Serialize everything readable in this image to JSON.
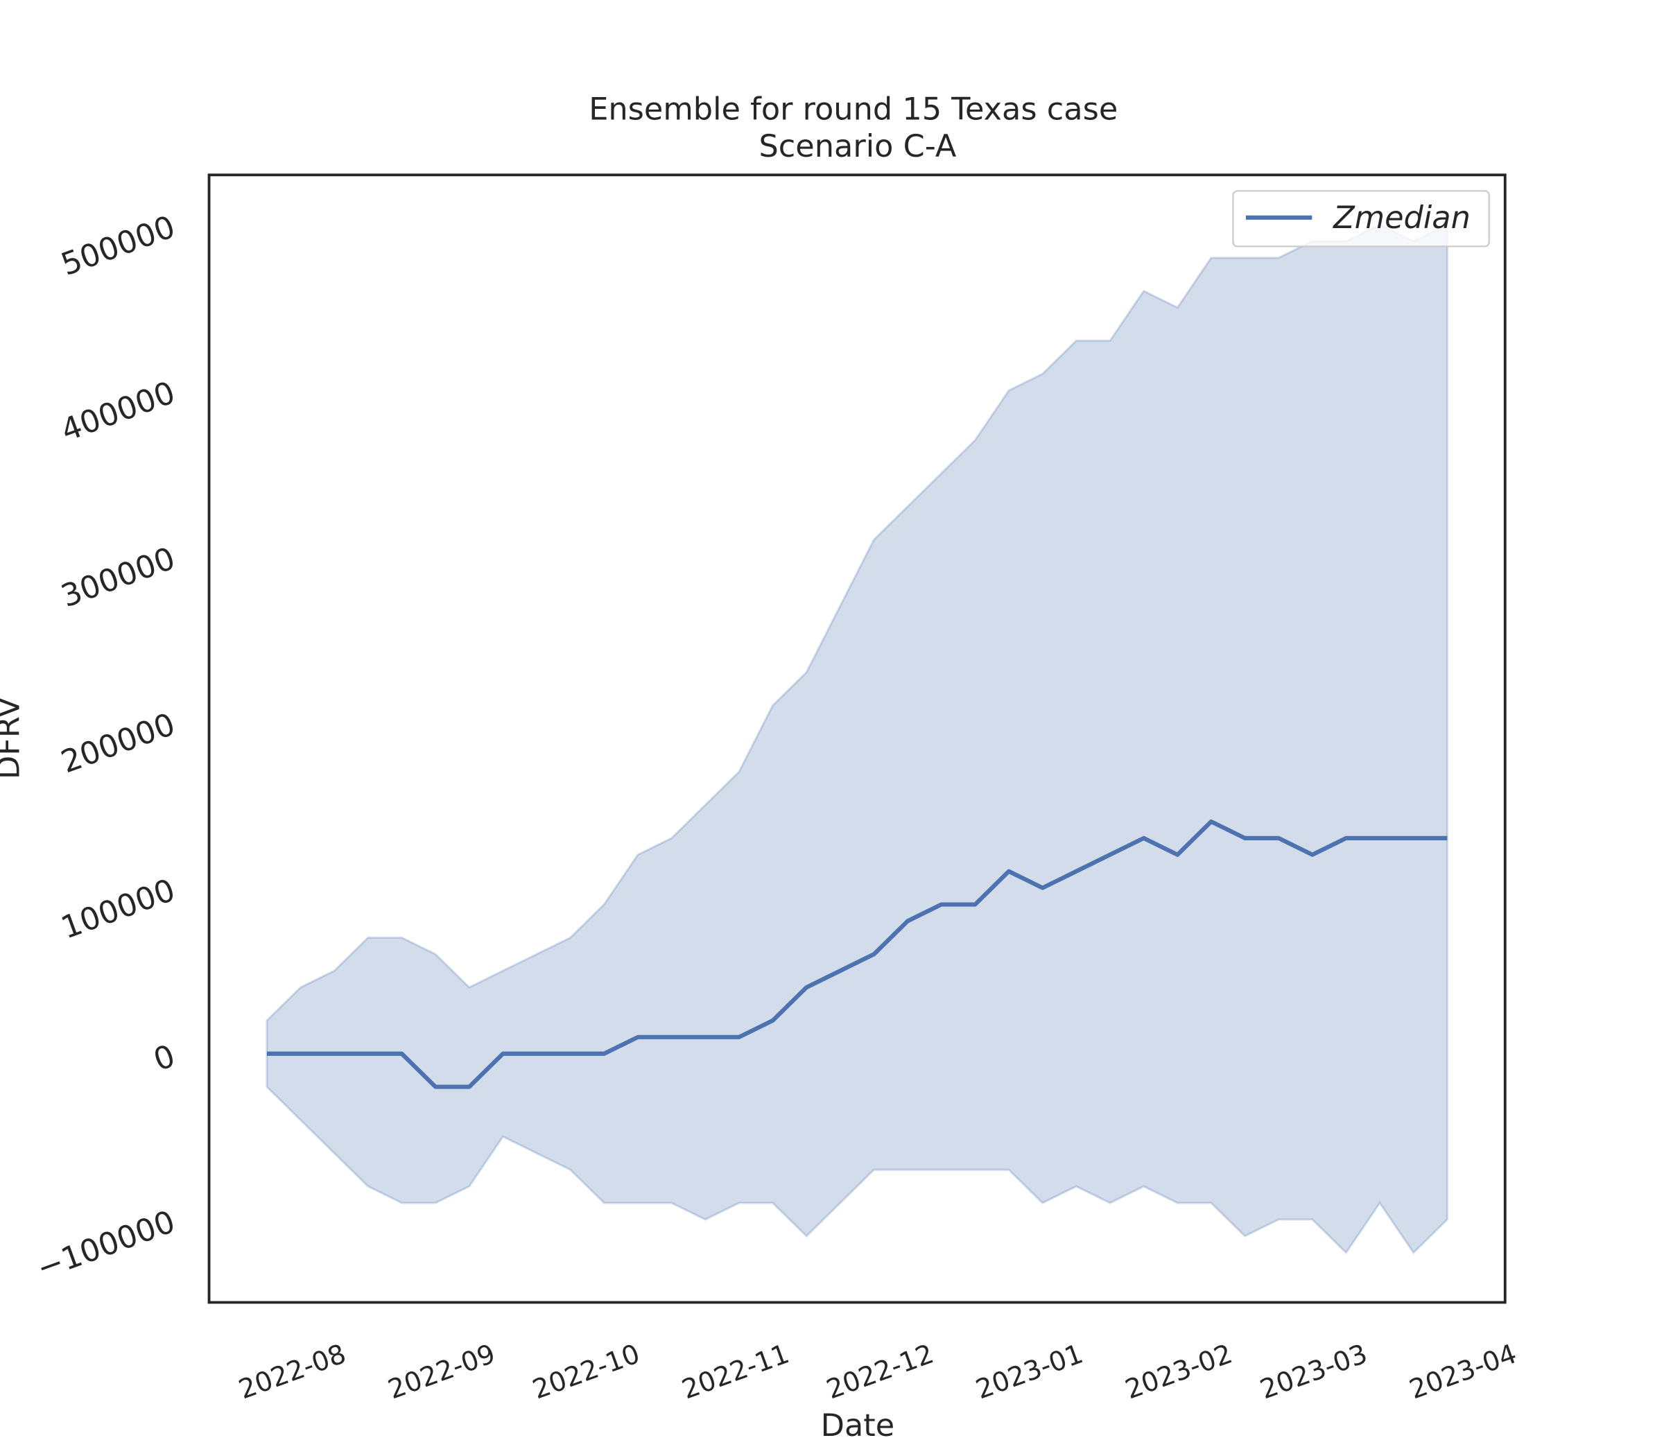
{
  "chart_data": {
    "type": "line",
    "title": "Ensemble for round 15 Texas case",
    "subtitle": "Scenario C-A",
    "x_label": "Date",
    "y_label": "DFRV",
    "x": [
      "2022-07-17",
      "2022-07-24",
      "2022-07-31",
      "2022-08-07",
      "2022-08-14",
      "2022-08-21",
      "2022-08-28",
      "2022-09-04",
      "2022-09-11",
      "2022-09-18",
      "2022-09-25",
      "2022-10-02",
      "2022-10-09",
      "2022-10-16",
      "2022-10-23",
      "2022-10-30",
      "2022-11-06",
      "2022-11-13",
      "2022-11-20",
      "2022-11-27",
      "2022-12-04",
      "2022-12-11",
      "2022-12-18",
      "2022-12-25",
      "2023-01-01",
      "2023-01-08",
      "2023-01-15",
      "2023-01-22",
      "2023-01-29",
      "2023-02-05",
      "2023-02-12",
      "2023-02-19",
      "2023-02-26",
      "2023-03-05",
      "2023-03-12",
      "2023-03-19"
    ],
    "series": [
      {
        "name": "Zmedian",
        "color": "#4c72b0",
        "values": [
          0,
          0,
          0,
          0,
          0,
          -20000,
          -20000,
          0,
          0,
          0,
          0,
          10000,
          10000,
          10000,
          10000,
          20000,
          40000,
          50000,
          60000,
          80000,
          90000,
          90000,
          110000,
          100000,
          110000,
          120000,
          130000,
          120000,
          140000,
          130000,
          130000,
          120000,
          130000,
          130000,
          130000,
          130000
        ]
      }
    ],
    "band": {
      "color": "#4c72b0",
      "lower": [
        -20000,
        -40000,
        -60000,
        -80000,
        -90000,
        -90000,
        -80000,
        -50000,
        -60000,
        -70000,
        -90000,
        -90000,
        -90000,
        -100000,
        -90000,
        -90000,
        -110000,
        -90000,
        -70000,
        -70000,
        -70000,
        -70000,
        -70000,
        -90000,
        -80000,
        -90000,
        -80000,
        -90000,
        -90000,
        -110000,
        -100000,
        -100000,
        -120000,
        -90000,
        -120000,
        -100000
      ],
      "upper": [
        20000,
        40000,
        50000,
        70000,
        70000,
        60000,
        40000,
        50000,
        60000,
        70000,
        90000,
        120000,
        130000,
        150000,
        170000,
        210000,
        230000,
        270000,
        310000,
        330000,
        350000,
        370000,
        400000,
        410000,
        430000,
        430000,
        460000,
        450000,
        480000,
        480000,
        480000,
        490000,
        490000,
        500000,
        490000,
        500000
      ]
    },
    "xlim": [
      "2022-07-05",
      "2023-03-31"
    ],
    "xticks": [
      {
        "value": "2022-08-01",
        "label": "2022-08"
      },
      {
        "value": "2022-09-01",
        "label": "2022-09"
      },
      {
        "value": "2022-10-01",
        "label": "2022-10"
      },
      {
        "value": "2022-11-01",
        "label": "2022-11"
      },
      {
        "value": "2022-12-01",
        "label": "2022-12"
      },
      {
        "value": "2023-01-01",
        "label": "2023-01"
      },
      {
        "value": "2023-02-01",
        "label": "2023-02"
      },
      {
        "value": "2023-03-01",
        "label": "2023-03"
      },
      {
        "value": "2023-04-01",
        "label": "2023-04"
      }
    ],
    "ylim": [
      -150000,
      530000
    ],
    "yticks": [
      {
        "value": -100000,
        "label": "−100000"
      },
      0,
      100000,
      200000,
      300000,
      400000,
      500000
    ],
    "legend": "upper right"
  }
}
